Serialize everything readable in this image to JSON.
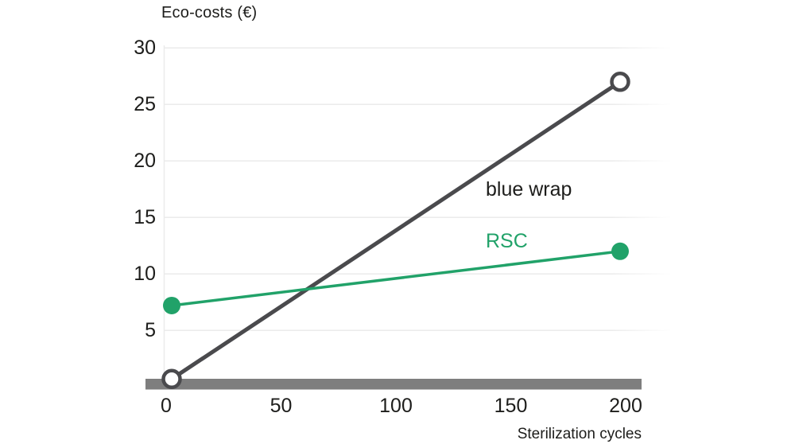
{
  "chart_data": {
    "type": "line",
    "title": "Eco-costs (€)",
    "xlabel": "Sterilization cycles",
    "ylabel": "Eco-costs (€)",
    "xlim": [
      0,
      200
    ],
    "ylim": [
      0,
      30
    ],
    "xticks": [
      0,
      50,
      100,
      150,
      200
    ],
    "yticks": [
      5,
      10,
      15,
      20,
      25,
      30
    ],
    "grid": "horizontal-only",
    "legend_position": "inline-labels-near-lines",
    "series": [
      {
        "name": "blue wrap",
        "color": "#4a4a4d",
        "label_color": "#1d1d1b",
        "marker": "open-circle",
        "points": [
          [
            0,
            0.7
          ],
          [
            200,
            27
          ]
        ]
      },
      {
        "name": "RSC",
        "color": "#21a269",
        "label_color": "#21a269",
        "marker": "filled-circle",
        "points": [
          [
            0,
            7.2
          ],
          [
            200,
            12
          ]
        ]
      }
    ],
    "colors": {
      "axis_bar": "#7e7e7e",
      "gridline": "#ebebeb",
      "text": "#1d1d1b",
      "background": "#ffffff"
    }
  }
}
